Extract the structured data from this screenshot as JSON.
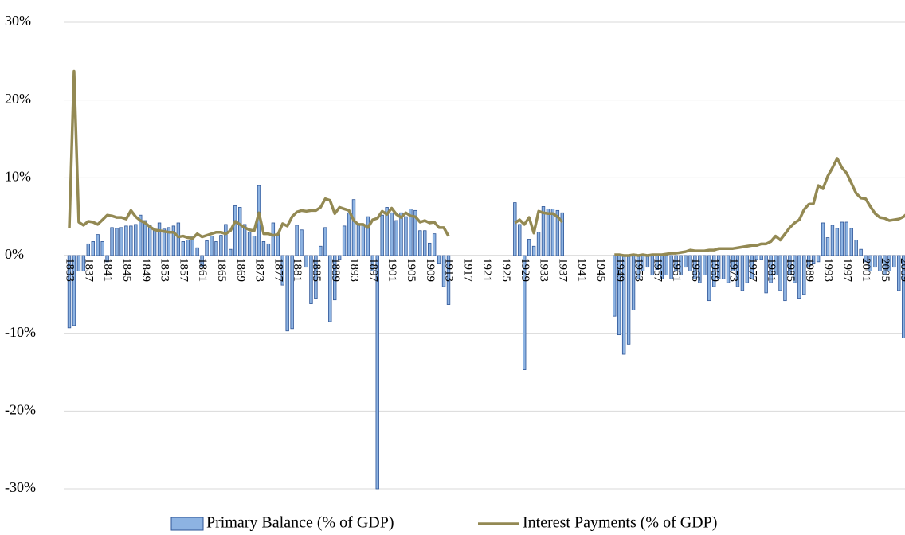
{
  "chart_data": {
    "type": "bar-line",
    "categories": [
      "1833",
      null,
      null,
      null,
      "1837",
      null,
      null,
      null,
      "1841",
      null,
      null,
      null,
      "1845",
      null,
      null,
      null,
      "1849",
      null,
      null,
      null,
      "1853",
      null,
      null,
      null,
      "1857",
      null,
      null,
      null,
      "1861",
      null,
      null,
      null,
      "1865",
      null,
      null,
      null,
      "1869",
      null,
      null,
      null,
      "1873",
      null,
      null,
      null,
      "1877",
      null,
      null,
      null,
      "1881",
      null,
      null,
      null,
      "1885",
      null,
      null,
      null,
      "1889",
      null,
      null,
      null,
      "1893",
      null,
      null,
      null,
      "1897",
      null,
      null,
      null,
      "1901",
      null,
      null,
      null,
      "1905",
      null,
      null,
      null,
      "1909",
      null,
      null,
      null,
      "1913",
      null,
      null,
      null,
      "1917",
      null,
      null,
      null,
      "1921",
      null,
      null,
      null,
      "1925",
      null,
      null,
      null,
      "1929",
      null,
      null,
      null,
      "1933",
      null,
      null,
      null,
      "1937",
      null,
      null,
      null,
      "1941",
      null,
      null,
      null,
      "1945",
      null,
      null,
      null,
      "1949",
      null,
      null,
      null,
      "1953",
      null,
      null,
      null,
      "1957",
      null,
      null,
      null,
      "1961",
      null,
      null,
      null,
      "1965",
      null,
      null,
      null,
      "1969",
      null,
      null,
      null,
      "1973",
      null,
      null,
      null,
      "1977",
      null,
      null,
      null,
      "1981",
      null,
      null,
      null,
      "1985",
      null,
      null,
      null,
      "1989",
      null,
      null,
      null,
      "1993",
      null,
      null,
      null,
      "1997",
      null,
      null,
      null,
      "2001",
      null,
      null,
      null,
      "2005",
      null,
      null,
      null,
      "2009",
      null
    ],
    "series": [
      {
        "name": "Primary Balance (% of GDP)",
        "type": "bar",
        "color": "#8db3e2",
        "edge": "#2e5597",
        "values": [
          -9.3,
          -9.0,
          -2.0,
          -2.0,
          1.5,
          1.8,
          2.7,
          1.8,
          -0.8,
          3.6,
          3.5,
          3.6,
          3.8,
          3.8,
          4.0,
          5.2,
          4.5,
          3.9,
          3.2,
          4.2,
          3.4,
          3.6,
          3.8,
          4.2,
          1.8,
          2.0,
          2.5,
          1.0,
          -1.5,
          1.9,
          2.5,
          1.8,
          2.6,
          4.0,
          0.8,
          6.4,
          6.2,
          4.0,
          3.0,
          2.5,
          9.0,
          1.8,
          1.5,
          4.2,
          2.8,
          -3.8,
          -9.7,
          -9.4,
          3.9,
          3.3,
          -1.5,
          -6.2,
          -5.5,
          1.2,
          3.6,
          -8.5,
          -5.7,
          -0.5,
          3.8,
          5.5,
          7.2,
          4.0,
          4.0,
          5.0,
          -2.0,
          -30.0,
          5.2,
          6.2,
          5.5,
          4.5,
          5.5,
          5.0,
          6.0,
          5.8,
          3.2,
          3.2,
          1.6,
          2.8,
          -1.0,
          -4.0,
          -6.3,
          null,
          null,
          null,
          null,
          null,
          null,
          null,
          null,
          null,
          null,
          null,
          null,
          null,
          6.8,
          4.0,
          -14.7,
          2.1,
          1.2,
          3.0,
          6.3,
          6.0,
          6.0,
          5.8,
          5.5,
          null,
          null,
          null,
          null,
          null,
          null,
          null,
          null,
          null,
          null,
          -7.8,
          -10.2,
          -12.7,
          -11.4,
          -7.0,
          -3.0,
          -2.0,
          -1.5,
          -2.5,
          -1.8,
          -3.0,
          -2.5,
          -3.0,
          -2.0,
          -2.5,
          -1.5,
          -2.0,
          -3.0,
          -3.5,
          -2.5,
          -5.8,
          -4.0,
          -3.0,
          -3.0,
          -3.5,
          -2.0,
          -4.0,
          -4.5,
          -3.5,
          -3.0,
          -0.5,
          -0.5,
          -4.8,
          -3.5,
          -2.5,
          -4.5,
          -5.8,
          -2.5,
          -3.5,
          -5.5,
          -5.0,
          -1.5,
          -1.0,
          -0.8,
          4.2,
          2.3,
          3.9,
          3.5,
          4.3,
          4.3,
          3.5,
          2.0,
          0.8,
          -0.8,
          -2.0,
          -1.5,
          -2.0,
          -2.5,
          -2.0,
          -1.5,
          -4.5,
          -10.6,
          -4.5
        ]
      },
      {
        "name": "Interest Payments (% of GDP)",
        "type": "line",
        "color": "#938953",
        "values": [
          3.5,
          23.7,
          4.3,
          3.9,
          4.4,
          4.3,
          4.0,
          4.6,
          5.2,
          5.1,
          4.9,
          4.9,
          4.7,
          5.8,
          5.0,
          4.5,
          4.2,
          3.7,
          3.3,
          3.2,
          3.1,
          3.0,
          3.0,
          2.4,
          2.5,
          2.3,
          2.2,
          2.8,
          2.4,
          2.6,
          2.8,
          3.0,
          3.0,
          2.8,
          3.2,
          4.4,
          4.0,
          3.6,
          3.3,
          3.2,
          5.5,
          2.8,
          2.8,
          2.6,
          2.7,
          4.1,
          3.8,
          5.0,
          5.6,
          5.8,
          5.7,
          5.8,
          5.8,
          6.2,
          7.3,
          7.1,
          5.4,
          6.2,
          6.0,
          5.8,
          4.5,
          4.0,
          4.0,
          3.6,
          4.6,
          4.8,
          5.7,
          5.3,
          6.1,
          5.3,
          4.9,
          5.5,
          5.1,
          5.0,
          4.3,
          4.5,
          4.2,
          4.3,
          3.6,
          3.6,
          2.5,
          null,
          null,
          null,
          null,
          null,
          null,
          null,
          null,
          null,
          null,
          null,
          null,
          null,
          4.2,
          4.6,
          4.0,
          4.9,
          2.9,
          5.7,
          5.5,
          5.4,
          5.4,
          5.0,
          4.3,
          null,
          null,
          null,
          null,
          null,
          null,
          null,
          null,
          null,
          null,
          0.1,
          0.1,
          0.0,
          0.0,
          0.1,
          0.0,
          0.1,
          0.0,
          0.1,
          0.1,
          0.1,
          0.2,
          0.3,
          0.3,
          0.4,
          0.5,
          0.7,
          0.6,
          0.6,
          0.6,
          0.7,
          0.7,
          0.9,
          0.9,
          0.9,
          0.9,
          1.0,
          1.1,
          1.2,
          1.3,
          1.3,
          1.5,
          1.5,
          1.8,
          2.5,
          2.0,
          2.8,
          3.6,
          4.2,
          4.6,
          5.9,
          6.6,
          6.7,
          9.0,
          8.6,
          10.2,
          11.3,
          12.5,
          11.3,
          10.6,
          9.3,
          8.0,
          7.4,
          7.3,
          6.3,
          5.4,
          4.9,
          4.8,
          4.5,
          4.6,
          4.7,
          5.0,
          5.5
        ]
      }
    ],
    "ylim": [
      -30,
      30
    ],
    "yticks": [
      {
        "value": -30,
        "label": "-30%"
      },
      {
        "value": -20,
        "label": "-20%"
      },
      {
        "value": -10,
        "label": "-10%"
      },
      {
        "value": 0,
        "label": "0%"
      },
      {
        "value": 10,
        "label": "10%"
      },
      {
        "value": 20,
        "label": "20%"
      },
      {
        "value": 30,
        "label": "30%"
      }
    ],
    "grid": true,
    "legend": "bottom"
  }
}
